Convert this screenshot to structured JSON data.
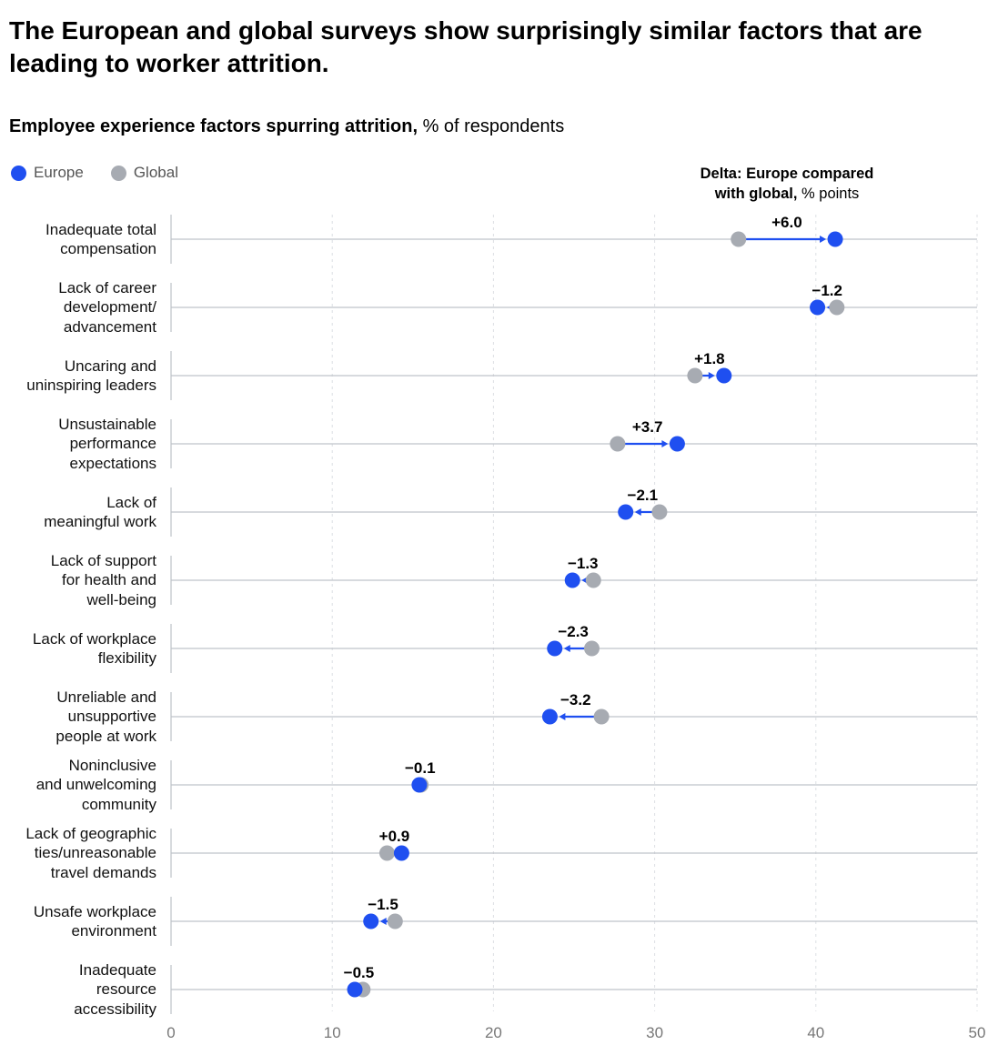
{
  "headline": "The European and global surveys show surprisingly similar factors that are leading to worker attrition.",
  "subtitle": {
    "bold": "Employee experience factors spurring attrition,",
    "rest": " % of respondents"
  },
  "legend": [
    {
      "name": "Europe",
      "color": "#1f4ff0"
    },
    {
      "name": "Global",
      "color": "#a7abb2"
    }
  ],
  "delta_header": {
    "bold_line1": "Delta: Europe compared",
    "bold_line2": "with global,",
    "rest": " % points"
  },
  "colors": {
    "europe": "#1f4ff0",
    "global": "#a7abb2",
    "axis": "#bfc3c9",
    "grid": "#dcdfe3"
  },
  "chart_data": {
    "type": "scatter",
    "subtype": "dumbbell",
    "title": "Employee experience factors spurring attrition, % of respondents",
    "xlim": [
      0,
      50
    ],
    "xticks": [
      0,
      10,
      20,
      30,
      40,
      50
    ],
    "legend_position": "top-left",
    "categories": [
      {
        "label_lines": [
          "Inadequate total",
          "compensation"
        ],
        "europe": 41.2,
        "global": 35.2,
        "delta": "+6.0"
      },
      {
        "label_lines": [
          "Lack of career",
          "development/",
          "advancement"
        ],
        "europe": 40.1,
        "global": 41.3,
        "delta": "−1.2"
      },
      {
        "label_lines": [
          "Uncaring and",
          "uninspiring leaders"
        ],
        "europe": 34.3,
        "global": 32.5,
        "delta": "+1.8"
      },
      {
        "label_lines": [
          "Unsustainable",
          "performance",
          "expectations"
        ],
        "europe": 31.4,
        "global": 27.7,
        "delta": "+3.7"
      },
      {
        "label_lines": [
          "Lack of",
          "meaningful work"
        ],
        "europe": 28.2,
        "global": 30.3,
        "delta": "−2.1"
      },
      {
        "label_lines": [
          "Lack of support",
          "for health and",
          "well-being"
        ],
        "europe": 24.9,
        "global": 26.2,
        "delta": "−1.3"
      },
      {
        "label_lines": [
          "Lack of workplace",
          "flexibility"
        ],
        "europe": 23.8,
        "global": 26.1,
        "delta": "−2.3"
      },
      {
        "label_lines": [
          "Unreliable and",
          "unsupportive",
          "people at work"
        ],
        "europe": 23.5,
        "global": 26.7,
        "delta": "−3.2"
      },
      {
        "label_lines": [
          "Noninclusive",
          "and unwelcoming",
          "community"
        ],
        "europe": 15.4,
        "global": 15.5,
        "delta": "−0.1"
      },
      {
        "label_lines": [
          "Lack of geographic",
          "ties/unreasonable",
          "travel demands"
        ],
        "europe": 14.3,
        "global": 13.4,
        "delta": "+0.9"
      },
      {
        "label_lines": [
          "Unsafe workplace",
          "environment"
        ],
        "europe": 12.4,
        "global": 13.9,
        "delta": "−1.5"
      },
      {
        "label_lines": [
          "Inadequate",
          "resource",
          "accessibility"
        ],
        "europe": 11.4,
        "global": 11.9,
        "delta": "−0.5"
      }
    ]
  }
}
